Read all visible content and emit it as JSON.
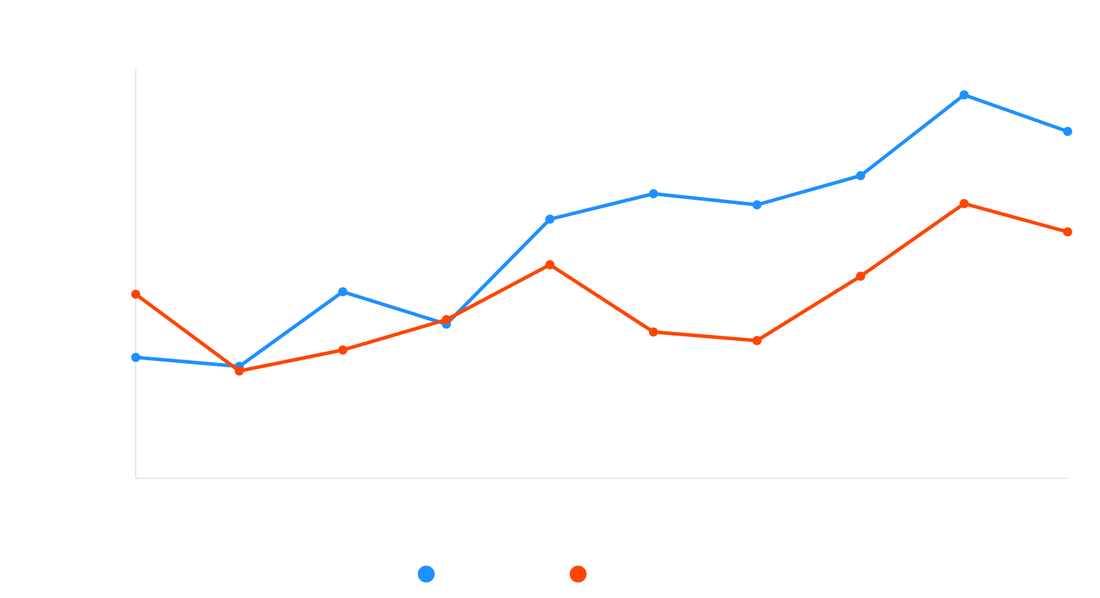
{
  "chart_data": {
    "type": "line",
    "title": "",
    "xlabel": "",
    "ylabel": "",
    "x": [
      1,
      2,
      3,
      4,
      5,
      6,
      7,
      8,
      9,
      10
    ],
    "ylim": [
      0,
      100
    ],
    "grid": false,
    "legend_placement": "bottom-center",
    "series": [
      {
        "color": "#1e90ff",
        "values": [
          29.5,
          27.3,
          45.5,
          37.6,
          63.2,
          69.4,
          66.7,
          73.8,
          93.5,
          84.6
        ]
      },
      {
        "color": "#ff4500",
        "values": [
          44.9,
          26.2,
          31.3,
          38.7,
          52.1,
          35.7,
          33.6,
          49.3,
          67.0,
          60.1
        ]
      }
    ]
  }
}
